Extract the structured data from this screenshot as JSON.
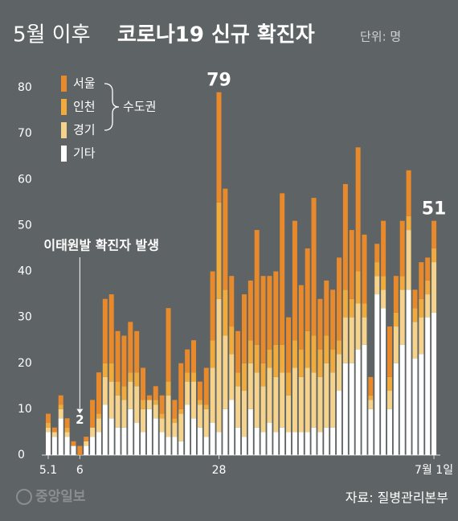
{
  "chart_data": {
    "type": "stacked_bar",
    "title_prefix": "5월 이후",
    "title": "코로나19 신규 확진자",
    "unit": "단위: 명",
    "legend_group": "수도권",
    "source": "자료: 질병관리본부",
    "logo": "중앙일보",
    "categories": [
      "5.1",
      null,
      null,
      null,
      null,
      "6",
      null,
      null,
      null,
      null,
      null,
      null,
      null,
      null,
      null,
      null,
      null,
      null,
      null,
      null,
      null,
      null,
      null,
      null,
      null,
      null,
      null,
      "28",
      null,
      null,
      null,
      null,
      null,
      null,
      null,
      null,
      null,
      null,
      null,
      null,
      null,
      null,
      null,
      null,
      null,
      null,
      null,
      null,
      null,
      null,
      null,
      null,
      null,
      null,
      null,
      null,
      null,
      null,
      null,
      null,
      null,
      "7월 1일"
    ],
    "value_labels": [
      null,
      null,
      null,
      null,
      null,
      "2",
      null,
      null,
      null,
      null,
      null,
      null,
      null,
      null,
      null,
      null,
      null,
      null,
      null,
      null,
      null,
      null,
      null,
      null,
      null,
      null,
      null,
      "79",
      null,
      null,
      null,
      null,
      null,
      null,
      null,
      null,
      null,
      null,
      null,
      null,
      null,
      null,
      null,
      null,
      null,
      null,
      null,
      null,
      null,
      null,
      null,
      null,
      null,
      null,
      null,
      null,
      null,
      null,
      null,
      null,
      null,
      "51"
    ],
    "annotations": [
      {
        "text": "이태원발 확진자 발생",
        "at": 5
      }
    ],
    "series": [
      {
        "name": "기타",
        "color": "#ffffff",
        "values": [
          5,
          4,
          8,
          4,
          2,
          0,
          2,
          4,
          5,
          11,
          8,
          6,
          6,
          10,
          7,
          5,
          10,
          8,
          5,
          4,
          4,
          3,
          11,
          8,
          6,
          4,
          7,
          5,
          10,
          12,
          6,
          4,
          10,
          6,
          5,
          7,
          5,
          6,
          5,
          5,
          5,
          5,
          6,
          5,
          6,
          6,
          14,
          20,
          20,
          23,
          24,
          10,
          35,
          32,
          10,
          20,
          24,
          36,
          21,
          22,
          30,
          31
        ]
      },
      {
        "name": "경기",
        "color": "#f6d38c",
        "values": [
          1,
          1,
          2,
          1,
          0,
          0,
          1,
          2,
          3,
          6,
          8,
          7,
          6,
          6,
          8,
          5,
          2,
          3,
          3,
          9,
          3,
          6,
          5,
          8,
          5,
          6,
          12,
          29,
          16,
          10,
          9,
          10,
          10,
          12,
          10,
          12,
          12,
          12,
          8,
          14,
          12,
          14,
          12,
          12,
          14,
          12,
          8,
          10,
          10,
          10,
          6,
          2,
          4,
          4,
          4,
          8,
          12,
          13,
          8,
          8,
          5,
          11
        ]
      },
      {
        "name": "인천",
        "color": "#f0ab3c",
        "values": [
          1,
          0,
          1,
          1,
          0,
          0,
          0,
          0,
          1,
          3,
          4,
          3,
          3,
          2,
          3,
          2,
          0,
          1,
          1,
          3,
          1,
          1,
          2,
          2,
          1,
          1,
          6,
          21,
          10,
          6,
          3,
          6,
          5,
          6,
          5,
          4,
          7,
          6,
          5,
          6,
          6,
          8,
          8,
          6,
          6,
          5,
          3,
          6,
          4,
          7,
          3,
          1,
          3,
          3,
          3,
          3,
          3,
          3,
          3,
          4,
          3,
          3
        ]
      },
      {
        "name": "서울",
        "color": "#e8892b",
        "values": [
          2,
          1,
          2,
          2,
          1,
          2,
          1,
          6,
          9,
          14,
          15,
          11,
          11,
          11,
          9,
          7,
          1,
          3,
          4,
          16,
          4,
          10,
          5,
          7,
          4,
          8,
          15,
          24,
          22,
          11,
          9,
          15,
          13,
          25,
          19,
          16,
          16,
          33,
          12,
          26,
          14,
          18,
          30,
          11,
          12,
          13,
          18,
          23,
          15,
          27,
          15,
          4,
          4,
          12,
          11,
          8,
          12,
          10,
          4,
          8,
          5,
          6
        ]
      }
    ],
    "ylim": [
      0,
      80
    ],
    "yticks": [
      0,
      10,
      20,
      30,
      40,
      50,
      60,
      70,
      80
    ],
    "grid": false
  }
}
